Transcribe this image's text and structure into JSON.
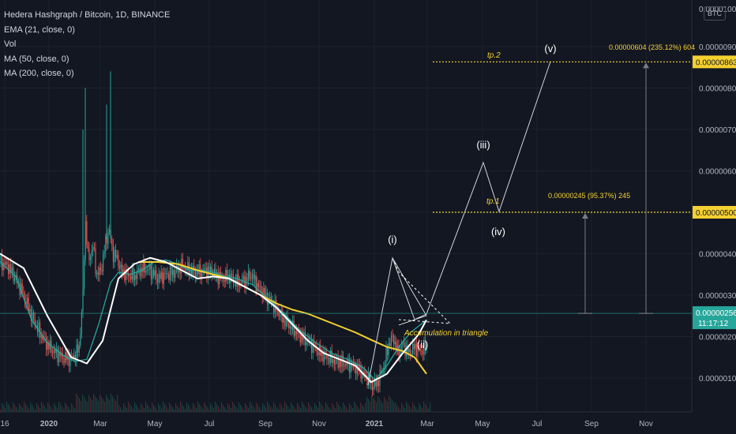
{
  "legend": {
    "title": "Hedera Hashgraph / Bitcoin, 1D, BINANCE",
    "ema": "EMA (21, close, 0)",
    "vol": "Vol",
    "ma50": "MA (50, close, 0)",
    "ma200": "MA (200, close, 0)"
  },
  "currency_button": "BTC",
  "colors": {
    "background": "#131722",
    "grid": "#1e222d",
    "ema": "#26a69a",
    "ma50": "#ffffff",
    "ma200": "#f5d130",
    "up_candle": "#26a69a",
    "down_candle": "#ef5350",
    "target_line": "#f5d130",
    "price_line": "#26a69a"
  },
  "chart_data": {
    "type": "candlestick",
    "symbol": "HBARBTC",
    "x_ticks": [
      "16",
      "2020",
      "Mar",
      "May",
      "Jul",
      "Sep",
      "Nov",
      "2021",
      "Mar",
      "May",
      "Jul",
      "Sep",
      "Nov"
    ],
    "y_ticks": [
      "0.00000100",
      "0.00000200",
      "0.00000300",
      "0.00000400",
      "0.00000500",
      "0.00000600",
      "0.00000700",
      "0.00000800",
      "0.00000900"
    ],
    "ylim": [
      4e-07,
      1e-05
    ],
    "last_price": "0.00000256",
    "countdown": "11:17:12",
    "tp1_price": "0.00000500",
    "tp2_price": "0.00000863",
    "measure1": "0.00000245 (95.37%) 245",
    "measure2": "0.00000604 (235.12%) 604",
    "tp1_label": "tp.1",
    "tp2_label": "tp.2",
    "wave_labels": [
      "(i)",
      "(ii)",
      "(iii)",
      "(iv)",
      "(v)"
    ],
    "triangle_label": "Accumulation in triangle",
    "ma50_points": [
      [
        0,
        400
      ],
      [
        30,
        365
      ],
      [
        60,
        250
      ],
      [
        90,
        150
      ],
      [
        110,
        135
      ],
      [
        130,
        190
      ],
      [
        150,
        340
      ],
      [
        170,
        375
      ],
      [
        190,
        390
      ],
      [
        210,
        380
      ],
      [
        230,
        360
      ],
      [
        250,
        340
      ],
      [
        270,
        345
      ],
      [
        290,
        340
      ],
      [
        310,
        320
      ],
      [
        330,
        300
      ],
      [
        350,
        270
      ],
      [
        370,
        230
      ],
      [
        390,
        190
      ],
      [
        410,
        160
      ],
      [
        430,
        145
      ],
      [
        450,
        130
      ],
      [
        470,
        90
      ],
      [
        490,
        110
      ],
      [
        510,
        160
      ],
      [
        530,
        205
      ],
      [
        540,
        240
      ]
    ],
    "ema_points": [
      [
        0,
        380
      ],
      [
        20,
        345
      ],
      [
        40,
        240
      ],
      [
        60,
        185
      ],
      [
        80,
        155
      ],
      [
        95,
        140
      ],
      [
        110,
        145
      ],
      [
        125,
        230
      ],
      [
        140,
        330
      ],
      [
        150,
        355
      ],
      [
        165,
        350
      ],
      [
        180,
        360
      ],
      [
        195,
        380
      ],
      [
        210,
        385
      ],
      [
        225,
        375
      ],
      [
        240,
        360
      ],
      [
        255,
        360
      ],
      [
        270,
        355
      ],
      [
        285,
        345
      ],
      [
        300,
        340
      ],
      [
        320,
        325
      ],
      [
        340,
        290
      ],
      [
        360,
        255
      ],
      [
        380,
        215
      ],
      [
        400,
        185
      ],
      [
        420,
        160
      ],
      [
        440,
        145
      ],
      [
        460,
        125
      ],
      [
        475,
        95
      ],
      [
        490,
        130
      ],
      [
        505,
        175
      ],
      [
        520,
        210
      ],
      [
        540,
        240
      ]
    ],
    "ma200_points": [
      [
        175,
        380
      ],
      [
        200,
        380
      ],
      [
        225,
        375
      ],
      [
        250,
        360
      ],
      [
        270,
        350
      ],
      [
        290,
        340
      ],
      [
        310,
        320
      ],
      [
        330,
        300
      ],
      [
        350,
        280
      ],
      [
        370,
        265
      ],
      [
        390,
        255
      ],
      [
        410,
        240
      ],
      [
        430,
        225
      ],
      [
        450,
        210
      ],
      [
        470,
        192
      ],
      [
        490,
        175
      ],
      [
        510,
        165
      ],
      [
        525,
        150
      ],
      [
        540,
        110
      ]
    ],
    "price_series": [
      [
        0,
        380
      ],
      [
        10,
        370
      ],
      [
        20,
        340
      ],
      [
        30,
        300
      ],
      [
        40,
        250
      ],
      [
        50,
        210
      ],
      [
        60,
        180
      ],
      [
        70,
        160
      ],
      [
        80,
        150
      ],
      [
        90,
        145
      ],
      [
        100,
        170
      ],
      [
        105,
        300
      ],
      [
        108,
        480
      ],
      [
        112,
        380
      ],
      [
        118,
        420
      ],
      [
        122,
        350
      ],
      [
        128,
        360
      ],
      [
        133,
        420
      ],
      [
        138,
        460
      ],
      [
        143,
        400
      ],
      [
        148,
        390
      ],
      [
        153,
        360
      ],
      [
        160,
        350
      ],
      [
        170,
        345
      ],
      [
        180,
        365
      ],
      [
        190,
        360
      ],
      [
        200,
        340
      ],
      [
        210,
        350
      ],
      [
        220,
        355
      ],
      [
        230,
        370
      ],
      [
        240,
        360
      ],
      [
        250,
        355
      ],
      [
        260,
        360
      ],
      [
        270,
        355
      ],
      [
        280,
        340
      ],
      [
        290,
        345
      ],
      [
        300,
        330
      ],
      [
        310,
        335
      ],
      [
        318,
        350
      ],
      [
        325,
        325
      ],
      [
        335,
        300
      ],
      [
        345,
        280
      ],
      [
        355,
        250
      ],
      [
        365,
        230
      ],
      [
        375,
        210
      ],
      [
        385,
        195
      ],
      [
        395,
        180
      ],
      [
        405,
        160
      ],
      [
        415,
        150
      ],
      [
        425,
        140
      ],
      [
        435,
        135
      ],
      [
        445,
        130
      ],
      [
        455,
        120
      ],
      [
        465,
        100
      ],
      [
        472,
        80
      ],
      [
        478,
        90
      ],
      [
        485,
        120
      ],
      [
        492,
        180
      ],
      [
        498,
        200
      ],
      [
        503,
        160
      ],
      [
        510,
        180
      ],
      [
        518,
        160
      ],
      [
        525,
        175
      ],
      [
        532,
        165
      ],
      [
        540,
        175
      ]
    ]
  }
}
